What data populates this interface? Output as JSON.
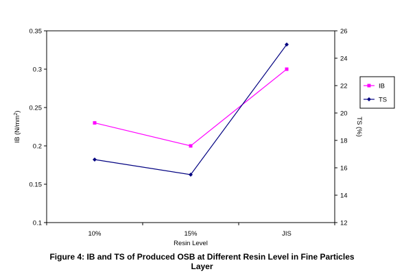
{
  "caption": {
    "line1": "Figure 4: IB and TS of Produced OSB at Different Resin Level in Fine Particles",
    "line2": "Layer"
  },
  "chart_data": {
    "type": "line",
    "categories": [
      "10%",
      "15%",
      "JIS"
    ],
    "xlabel": "Resin Level",
    "ylabel_left": {
      "text": "IB (N/mm",
      "sup": "2",
      "suffix": ")"
    },
    "ylabel_right": "TS (%)",
    "ylim_left": [
      0.1,
      0.35
    ],
    "yticks_left": [
      "0.1",
      "0.15",
      "0.2",
      "0.25",
      "0.3",
      "0.35"
    ],
    "ylim_right": [
      12,
      26
    ],
    "yticks_right": [
      "12",
      "14",
      "16",
      "18",
      "20",
      "22",
      "24",
      "26"
    ],
    "grid": false,
    "legend_position": "right",
    "series": [
      {
        "name": "IB",
        "axis": "left",
        "color": "#ff00ff",
        "marker": "square",
        "values": [
          0.23,
          0.2,
          0.3
        ]
      },
      {
        "name": "TS",
        "axis": "right",
        "color": "#000080",
        "marker": "diamond",
        "values": [
          16.6,
          15.5,
          25.0
        ]
      }
    ]
  }
}
